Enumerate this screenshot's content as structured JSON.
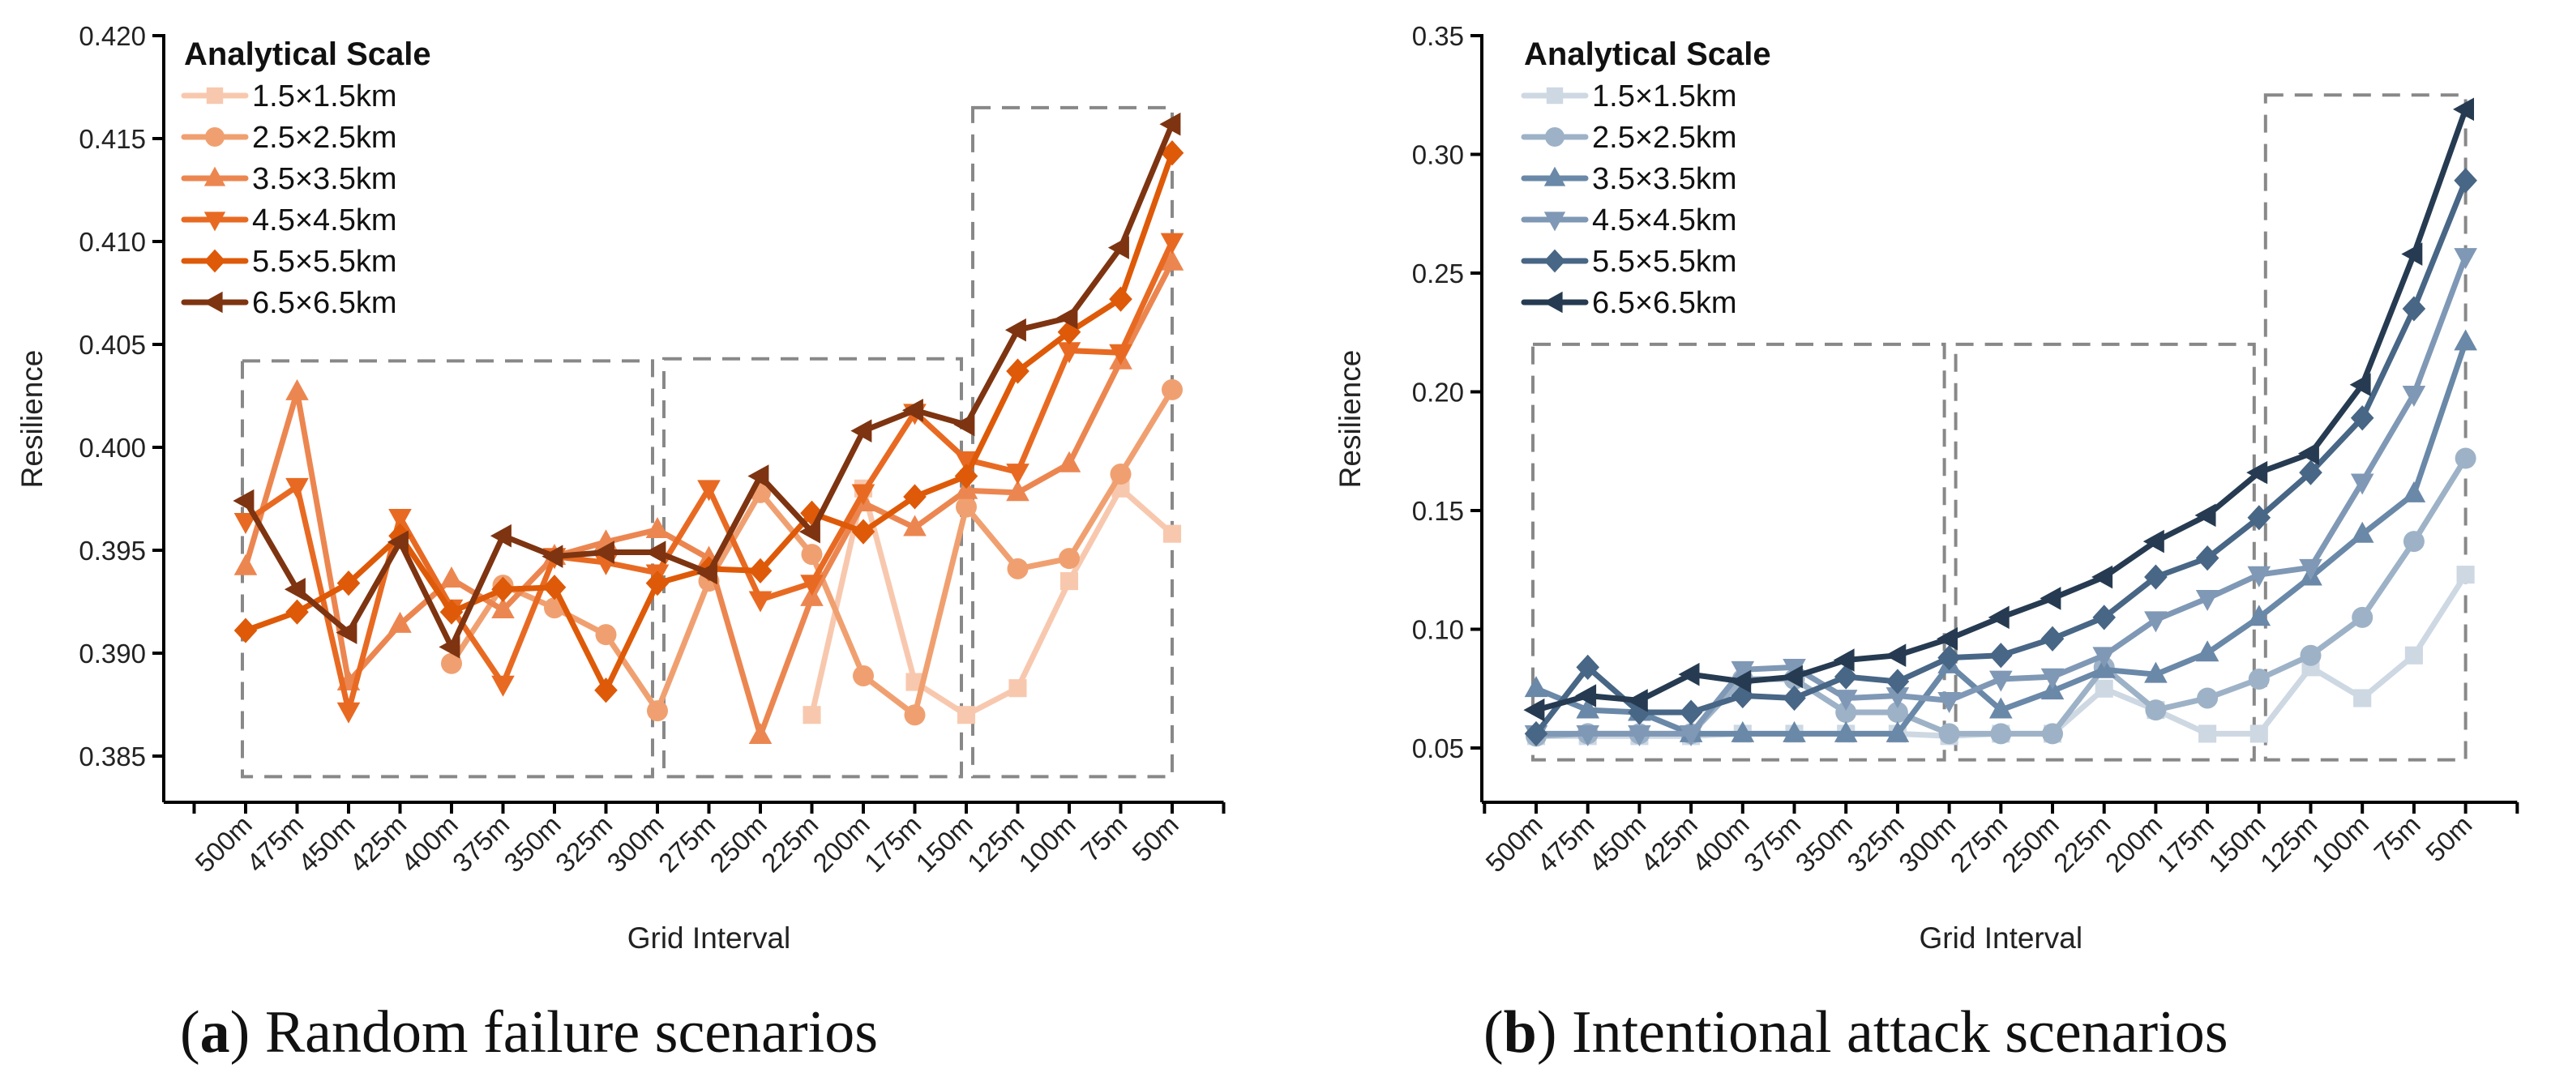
{
  "chart_data": [
    {
      "type": "line",
      "caption": {
        "open": "(",
        "label": "a",
        "close": ")",
        "text": " Random failure scenarios"
      },
      "xlabel": "Grid Interval",
      "ylabel": "Resilience",
      "x_categories": [
        "500m",
        "475m",
        "450m",
        "425m",
        "400m",
        "375m",
        "350m",
        "325m",
        "300m",
        "275m",
        "250m",
        "225m",
        "200m",
        "175m",
        "150m",
        "125m",
        "100m",
        "75m",
        "50m"
      ],
      "ylim": [
        0.3825,
        0.42
      ],
      "y_ticks": [
        0.385,
        0.39,
        0.395,
        0.4,
        0.405,
        0.41,
        0.415,
        0.42
      ],
      "y_tick_labels": [
        "0.385",
        "0.390",
        "0.395",
        "0.400",
        "0.405",
        "0.410",
        "0.415",
        "0.420"
      ],
      "grid": false,
      "legend_title": "Analytical Scale",
      "legend_position": "top-left",
      "series": [
        {
          "name": "1.5×1.5km",
          "color": "#f8c8ae",
          "marker": "square",
          "values": [
            null,
            null,
            null,
            null,
            null,
            null,
            null,
            null,
            null,
            null,
            null,
            0.387,
            0.398,
            0.3886,
            0.387,
            0.3883,
            0.3935,
            0.398,
            0.3958
          ]
        },
        {
          "name": "2.5×2.5km",
          "color": "#f0a070",
          "marker": "circle",
          "values": [
            null,
            null,
            null,
            null,
            0.3895,
            0.3933,
            0.3922,
            0.3909,
            0.3872,
            0.3935,
            0.3978,
            0.3948,
            0.3889,
            0.387,
            0.3971,
            0.3941,
            0.3946,
            0.3987,
            0.4028
          ]
        },
        {
          "name": "3.5×3.5km",
          "color": "#ec8650",
          "marker": "triangle-up",
          "values": [
            0.3942,
            0.4027,
            0.3886,
            0.3914,
            0.3936,
            0.3921,
            0.3947,
            0.3954,
            0.396,
            0.3946,
            0.386,
            0.3927,
            0.3973,
            0.3961,
            0.3979,
            0.3978,
            0.3992,
            0.4042,
            0.409
          ]
        },
        {
          "name": "4.5×4.5km",
          "color": "#e86a22",
          "marker": "triangle-down",
          "values": [
            0.3964,
            0.3981,
            0.3872,
            0.3966,
            0.3922,
            0.3885,
            0.3947,
            0.3944,
            0.3939,
            0.398,
            0.3926,
            0.3934,
            0.3978,
            0.4017,
            0.3994,
            0.3988,
            0.4047,
            0.4046,
            0.41
          ]
        },
        {
          "name": "5.5×5.5km",
          "color": "#de5a08",
          "marker": "diamond",
          "values": [
            0.3911,
            0.392,
            0.3934,
            0.3957,
            0.392,
            0.3931,
            0.3932,
            0.3882,
            0.3934,
            0.3941,
            0.394,
            0.3968,
            0.3959,
            0.3976,
            0.3986,
            0.4037,
            0.4056,
            0.4072,
            0.4143
          ]
        },
        {
          "name": "6.5×6.5km",
          "color": "#7e3410",
          "marker": "triangle-left",
          "values": [
            0.3974,
            0.3931,
            0.391,
            0.3954,
            0.3903,
            0.3957,
            0.3947,
            0.3949,
            0.3949,
            0.3939,
            0.3986,
            0.3959,
            0.4008,
            0.4018,
            0.4011,
            0.4057,
            0.4063,
            0.4097,
            0.4157
          ]
        }
      ],
      "highlight_regions": [
        {
          "x_from": "500m",
          "x_to": "300m",
          "y_from": 0.384,
          "y_to": 0.4042
        },
        {
          "x_from": "300m",
          "x_to": "150m",
          "y_from": 0.384,
          "y_to": 0.4043
        },
        {
          "x_from": "150m",
          "x_to": "50m",
          "y_from": 0.384,
          "y_to": 0.4165
        }
      ]
    },
    {
      "type": "line",
      "caption": {
        "open": "(",
        "label": "b",
        "close": ")",
        "text": " Intentional attack scenarios"
      },
      "xlabel": "Grid Interval",
      "ylabel": "Resilience",
      "x_categories": [
        "500m",
        "475m",
        "450m",
        "425m",
        "400m",
        "375m",
        "350m",
        "325m",
        "300m",
        "275m",
        "250m",
        "225m",
        "200m",
        "175m",
        "150m",
        "125m",
        "100m",
        "75m",
        "50m"
      ],
      "ylim": [
        0.027,
        0.35
      ],
      "y_ticks": [
        0.05,
        0.1,
        0.15,
        0.2,
        0.25,
        0.3,
        0.35
      ],
      "y_tick_labels": [
        "0.05",
        "0.10",
        "0.15",
        "0.20",
        "0.25",
        "0.30",
        "0.35"
      ],
      "grid": false,
      "legend_title": "Analytical Scale",
      "legend_position": "top-left",
      "series": [
        {
          "name": "1.5×1.5km",
          "color": "#cdd8e3",
          "marker": "square",
          "values": [
            0.055,
            0.055,
            0.055,
            0.055,
            0.056,
            0.056,
            0.056,
            0.056,
            0.055,
            0.056,
            0.056,
            0.075,
            0.066,
            0.056,
            0.056,
            0.084,
            0.071,
            0.089,
            0.123
          ]
        },
        {
          "name": "2.5×2.5km",
          "color": "#9db2c7",
          "marker": "circle",
          "values": [
            0.055,
            0.056,
            0.056,
            0.056,
            0.079,
            0.079,
            0.065,
            0.065,
            0.056,
            0.056,
            0.056,
            0.084,
            0.066,
            0.071,
            0.079,
            0.089,
            0.105,
            0.137,
            0.172
          ]
        },
        {
          "name": "3.5×3.5km",
          "color": "#6a88a8",
          "marker": "triangle-up",
          "values": [
            0.075,
            0.066,
            0.065,
            0.056,
            0.056,
            0.056,
            0.056,
            0.056,
            0.085,
            0.066,
            0.074,
            0.083,
            0.081,
            0.09,
            0.105,
            0.122,
            0.14,
            0.157,
            0.221
          ]
        },
        {
          "name": "4.5×4.5km",
          "color": "#7f98b5",
          "marker": "triangle-down",
          "values": [
            0.056,
            0.056,
            0.056,
            0.056,
            0.083,
            0.084,
            0.071,
            0.072,
            0.07,
            0.079,
            0.08,
            0.089,
            0.104,
            0.113,
            0.123,
            0.126,
            0.162,
            0.199,
            0.257
          ]
        },
        {
          "name": "5.5×5.5km",
          "color": "#486685",
          "marker": "diamond",
          "values": [
            0.056,
            0.084,
            0.065,
            0.065,
            0.072,
            0.071,
            0.08,
            0.078,
            0.088,
            0.089,
            0.096,
            0.105,
            0.122,
            0.13,
            0.147,
            0.166,
            0.189,
            0.235,
            0.289
          ]
        },
        {
          "name": "6.5×6.5km",
          "color": "#263b51",
          "marker": "triangle-left",
          "values": [
            0.066,
            0.072,
            0.07,
            0.081,
            0.078,
            0.08,
            0.087,
            0.089,
            0.096,
            0.105,
            0.113,
            0.122,
            0.137,
            0.148,
            0.166,
            0.174,
            0.203,
            0.258,
            0.319
          ]
        }
      ],
      "highlight_regions": [
        {
          "x_from": "500m",
          "x_to": "300m",
          "y_from": 0.045,
          "y_to": 0.22
        },
        {
          "x_from": "300m",
          "x_to": "150m",
          "y_from": 0.045,
          "y_to": 0.22
        },
        {
          "x_from": "150m",
          "x_to": "50m",
          "y_from": 0.045,
          "y_to": 0.325
        }
      ]
    }
  ]
}
